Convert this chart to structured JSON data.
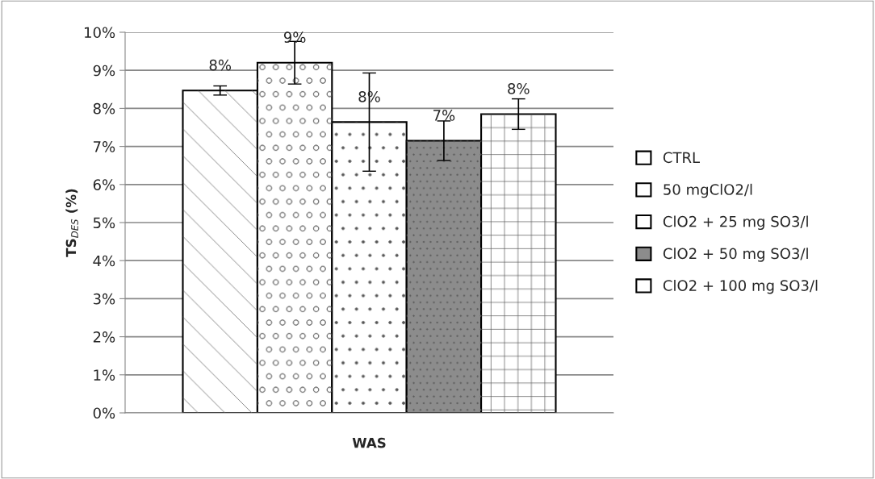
{
  "chart_data": {
    "type": "bar",
    "ylabel": "TS$_{DES}$ (%)",
    "categories": [
      "WAS"
    ],
    "series": [
      {
        "name": "CTRL",
        "color": "#ffffff",
        "values": [
          8.47
        ],
        "errors": [
          0.12
        ],
        "value_labels": [
          "8%"
        ]
      },
      {
        "name": "50 mgClO2/l",
        "color": "#ffffff",
        "values": [
          9.2
        ],
        "errors": [
          0.56
        ],
        "value_labels": [
          "9%"
        ]
      },
      {
        "name": "ClO2 + 25 mg SO3/l",
        "color": "#ffffff",
        "values": [
          7.64
        ],
        "errors": [
          1.29
        ],
        "value_labels": [
          "8%"
        ]
      },
      {
        "name": "ClO2 + 50 mg SO3/l",
        "color": "#8c8c8c",
        "values": [
          7.15
        ],
        "errors": [
          0.52
        ],
        "value_labels": [
          "7%"
        ]
      },
      {
        "name": "ClO2 + 100 mg SO3/l",
        "color": "#ffffff",
        "values": [
          7.85
        ],
        "errors": [
          0.4
        ],
        "value_labels": [
          "8%"
        ]
      }
    ],
    "ylim": [
      0,
      10
    ],
    "yticks": [
      {
        "value": 0,
        "label": "0%"
      },
      {
        "value": 1,
        "label": "1%"
      },
      {
        "value": 2,
        "label": "2%"
      },
      {
        "value": 3,
        "label": "3%"
      },
      {
        "value": 4,
        "label": "4%"
      },
      {
        "value": 5,
        "label": "5%"
      },
      {
        "value": 6,
        "label": "6%"
      },
      {
        "value": 7,
        "label": "7%"
      },
      {
        "value": 8,
        "label": "8%"
      },
      {
        "value": 9,
        "label": "9%"
      },
      {
        "value": 10,
        "label": "10%"
      }
    ],
    "grid": "y",
    "legend": "right"
  }
}
